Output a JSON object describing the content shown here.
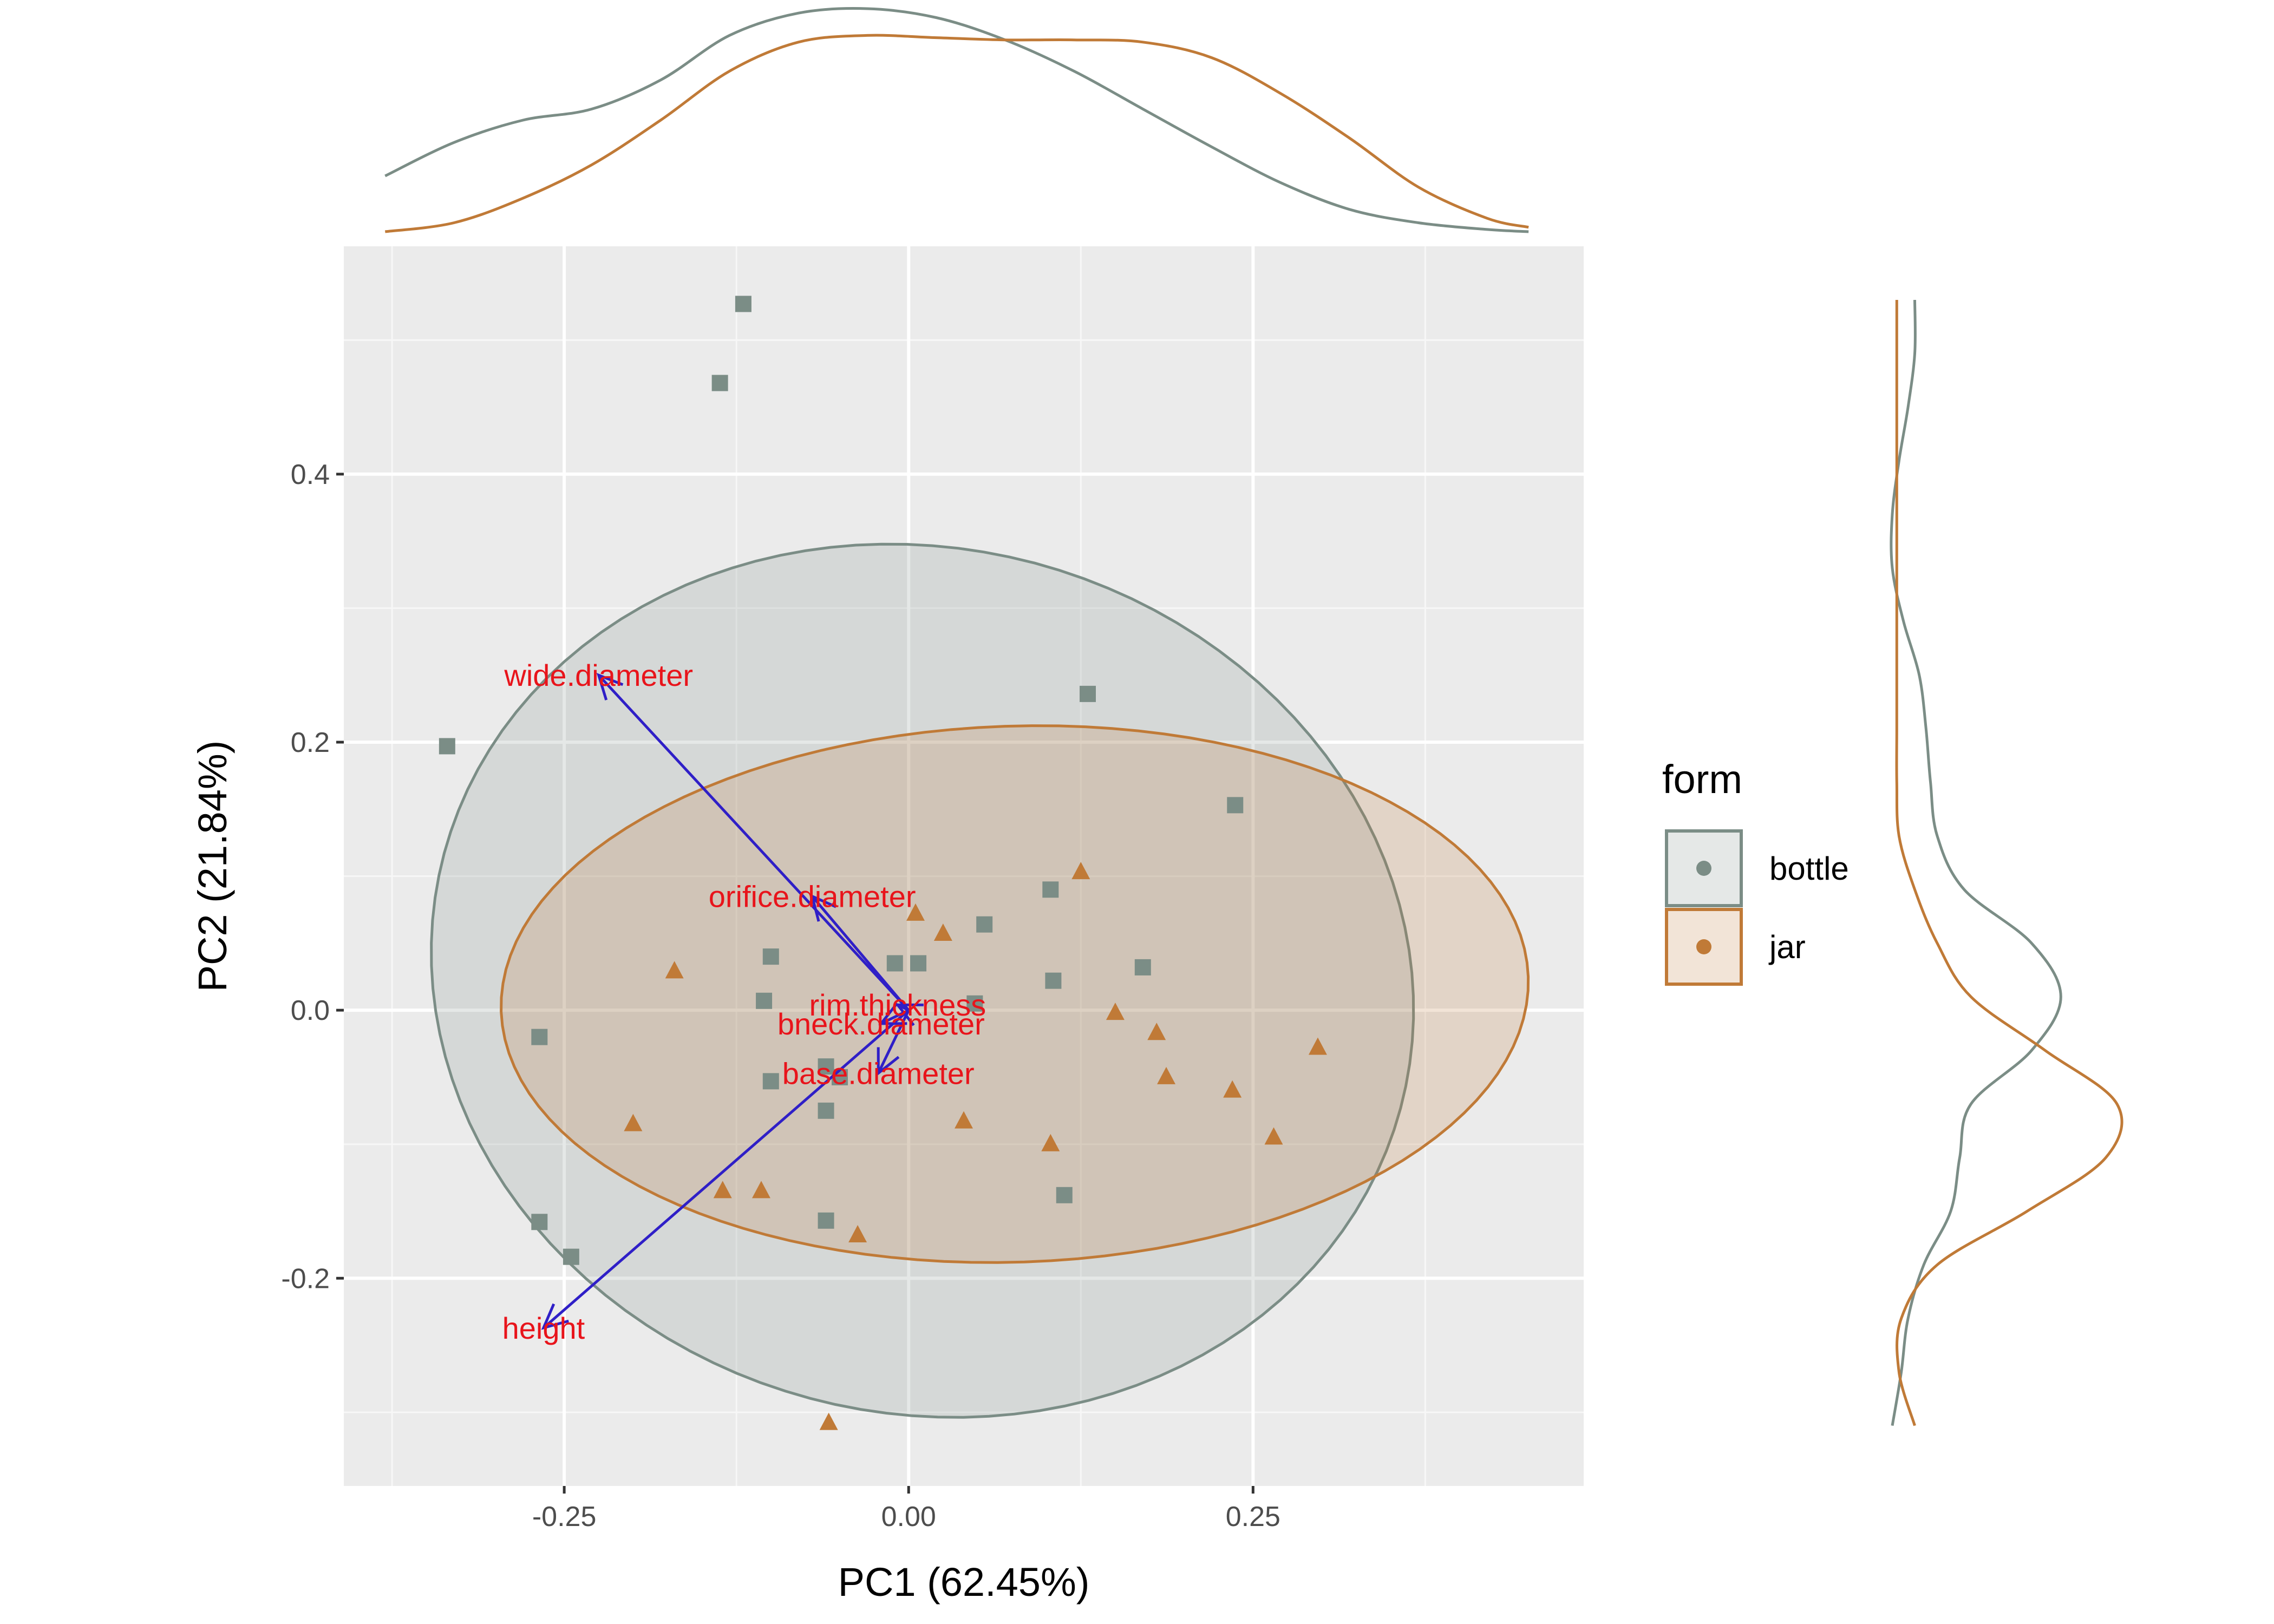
{
  "chart_data": {
    "type": "scatter",
    "title": "",
    "xlabel": "PC1 (62.45%)",
    "ylabel": "PC2 (21.84%)",
    "xlim": [
      -0.41,
      0.49
    ],
    "ylim": [
      -0.355,
      0.57
    ],
    "x_ticks": [
      -0.25,
      0.0,
      0.25
    ],
    "x_tick_labels": [
      "-0.25",
      "0.00",
      "0.25"
    ],
    "y_ticks": [
      -0.2,
      0.0,
      0.2,
      0.4
    ],
    "y_tick_labels": [
      "-0.2",
      "0.0",
      "0.2",
      "0.4"
    ],
    "grid": true,
    "legend": {
      "title": "form",
      "position": "right"
    },
    "series": [
      {
        "name": "bottle",
        "color": "#7b8d86",
        "marker": "square",
        "points": [
          [
            -0.12,
            0.527
          ],
          [
            -0.137,
            0.468
          ],
          [
            -0.335,
            0.197
          ],
          [
            0.13,
            0.236
          ],
          [
            0.237,
            0.153
          ],
          [
            0.103,
            0.09
          ],
          [
            0.055,
            0.064
          ],
          [
            0.17,
            0.032
          ],
          [
            -0.1,
            0.04
          ],
          [
            -0.01,
            0.035
          ],
          [
            0.007,
            0.035
          ],
          [
            0.105,
            0.022
          ],
          [
            -0.105,
            0.007
          ],
          [
            0.048,
            0.005
          ],
          [
            -0.268,
            -0.02
          ],
          [
            -0.06,
            -0.042
          ],
          [
            -0.05,
            -0.05
          ],
          [
            -0.06,
            -0.075
          ],
          [
            0.113,
            -0.138
          ],
          [
            -0.268,
            -0.158
          ],
          [
            -0.06,
            -0.157
          ],
          [
            -0.245,
            -0.184
          ],
          [
            -0.1,
            -0.053
          ]
        ]
      },
      {
        "name": "jar",
        "color": "#c07a37",
        "marker": "triangle",
        "points": [
          [
            0.125,
            0.103
          ],
          [
            0.005,
            0.072
          ],
          [
            0.025,
            0.057
          ],
          [
            -0.17,
            0.029
          ],
          [
            0.15,
            -0.002
          ],
          [
            0.18,
            -0.017
          ],
          [
            0.297,
            -0.028
          ],
          [
            0.187,
            -0.05
          ],
          [
            0.235,
            -0.06
          ],
          [
            -0.2,
            -0.085
          ],
          [
            0.04,
            -0.083
          ],
          [
            0.265,
            -0.095
          ],
          [
            0.103,
            -0.1
          ],
          [
            -0.135,
            -0.135
          ],
          [
            -0.107,
            -0.135
          ],
          [
            -0.037,
            -0.168
          ],
          [
            -0.058,
            -0.308
          ]
        ]
      }
    ],
    "ellipses": [
      {
        "group": "bottle",
        "center": [
          0.01,
          0.022
        ],
        "semi_axes": [
          0.36,
          0.322
        ],
        "rotation_deg": -18
      },
      {
        "group": "jar",
        "center": [
          0.077,
          0.012
        ],
        "semi_axes": [
          0.373,
          0.2
        ],
        "rotation_deg": 2
      }
    ],
    "loadings": [
      {
        "label": "wide.diameter",
        "x": -0.225,
        "y": 0.25
      },
      {
        "label": "orifice.diameter",
        "x": -0.07,
        "y": 0.085
      },
      {
        "label": "rim.thickness",
        "x": -0.008,
        "y": 0.004
      },
      {
        "label": "bneck.diameter",
        "x": -0.02,
        "y": -0.01
      },
      {
        "label": "base.diameter",
        "x": -0.022,
        "y": -0.047
      },
      {
        "label": "height",
        "x": -0.265,
        "y": -0.237
      }
    ],
    "loading_color": "#2f1fc7",
    "loading_label_color": "#e8141b",
    "marginal_x_density": {
      "x": [
        -0.38,
        -0.33,
        -0.28,
        -0.23,
        -0.18,
        -0.13,
        -0.08,
        -0.03,
        0.02,
        0.07,
        0.12,
        0.17,
        0.22,
        0.27,
        0.32,
        0.37,
        0.42,
        0.45
      ],
      "bottle": [
        0.25,
        0.4,
        0.5,
        0.55,
        0.68,
        0.88,
        0.98,
        1.0,
        0.96,
        0.86,
        0.72,
        0.55,
        0.38,
        0.22,
        0.1,
        0.04,
        0.01,
        0.0
      ],
      "jar": [
        0.0,
        0.04,
        0.15,
        0.3,
        0.5,
        0.72,
        0.85,
        0.88,
        0.87,
        0.86,
        0.86,
        0.85,
        0.78,
        0.62,
        0.42,
        0.2,
        0.06,
        0.02
      ]
    },
    "marginal_y_density": {
      "y": [
        -0.31,
        -0.27,
        -0.23,
        -0.19,
        -0.15,
        -0.11,
        -0.07,
        -0.03,
        0.01,
        0.05,
        0.09,
        0.13,
        0.17,
        0.21,
        0.25,
        0.29,
        0.33,
        0.37,
        0.41,
        0.45,
        0.49,
        0.53
      ],
      "bottle": [
        0.0,
        0.04,
        0.07,
        0.14,
        0.26,
        0.3,
        0.35,
        0.62,
        0.75,
        0.62,
        0.32,
        0.2,
        0.17,
        0.15,
        0.12,
        0.05,
        0.0,
        0.0,
        0.03,
        0.07,
        0.1,
        0.1
      ],
      "jar": [
        0.1,
        0.03,
        0.04,
        0.2,
        0.6,
        0.95,
        1.0,
        0.68,
        0.35,
        0.2,
        0.1,
        0.03,
        0.02,
        0.02,
        0.02,
        0.02,
        0.02,
        0.02,
        0.02,
        0.02,
        0.02,
        0.02
      ]
    }
  }
}
